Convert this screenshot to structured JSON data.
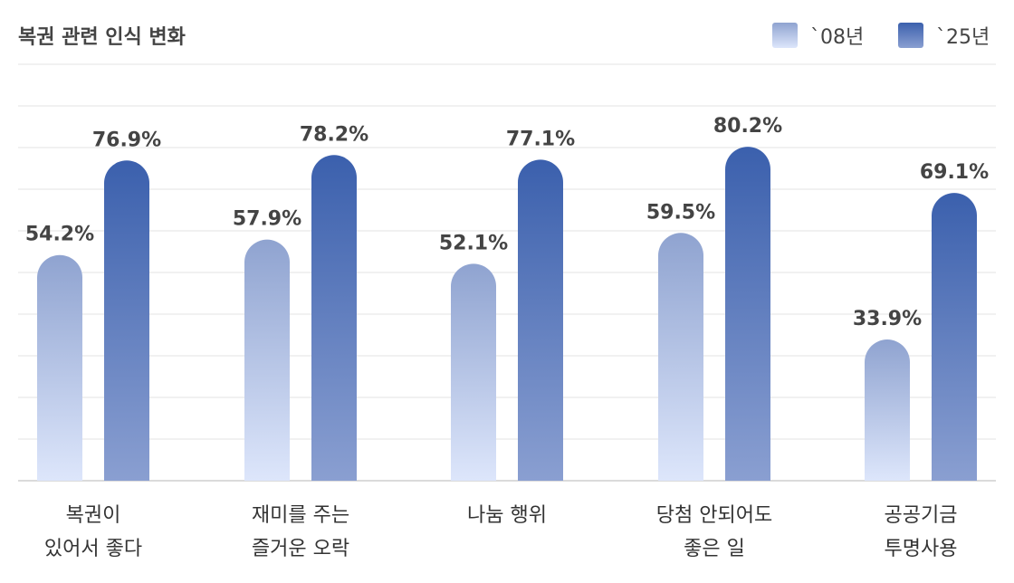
{
  "chart_data": {
    "type": "bar",
    "title": "복권 관련 인식 변화",
    "unit": "%",
    "legend_position": "top-right",
    "grid": true,
    "ylim": [
      0,
      100
    ],
    "categories": [
      [
        "복권이",
        "있어서 좋다"
      ],
      [
        "재미를 주는",
        "즐거운 오락"
      ],
      [
        "나눔 행위"
      ],
      [
        "당첨 안되어도",
        "좋은 일"
      ],
      [
        "공공기금",
        "투명사용"
      ]
    ],
    "series": [
      {
        "name": "`08년",
        "values": [
          54.2,
          57.9,
          52.1,
          59.5,
          33.9
        ],
        "colors": [
          "#dde6fb",
          "#8fa3d0"
        ]
      },
      {
        "name": "`25년",
        "values": [
          76.9,
          78.2,
          77.1,
          80.2,
          69.1
        ],
        "colors": [
          "#8a9fd1",
          "#3b60ad"
        ]
      }
    ],
    "value_labels": {
      "`08년": [
        "54.2%",
        "57.9%",
        "52.1%",
        "59.5%",
        "33.9%"
      ],
      "`25년": [
        "76.9%",
        "78.2%",
        "77.1%",
        "80.2%",
        "69.1%"
      ]
    }
  }
}
